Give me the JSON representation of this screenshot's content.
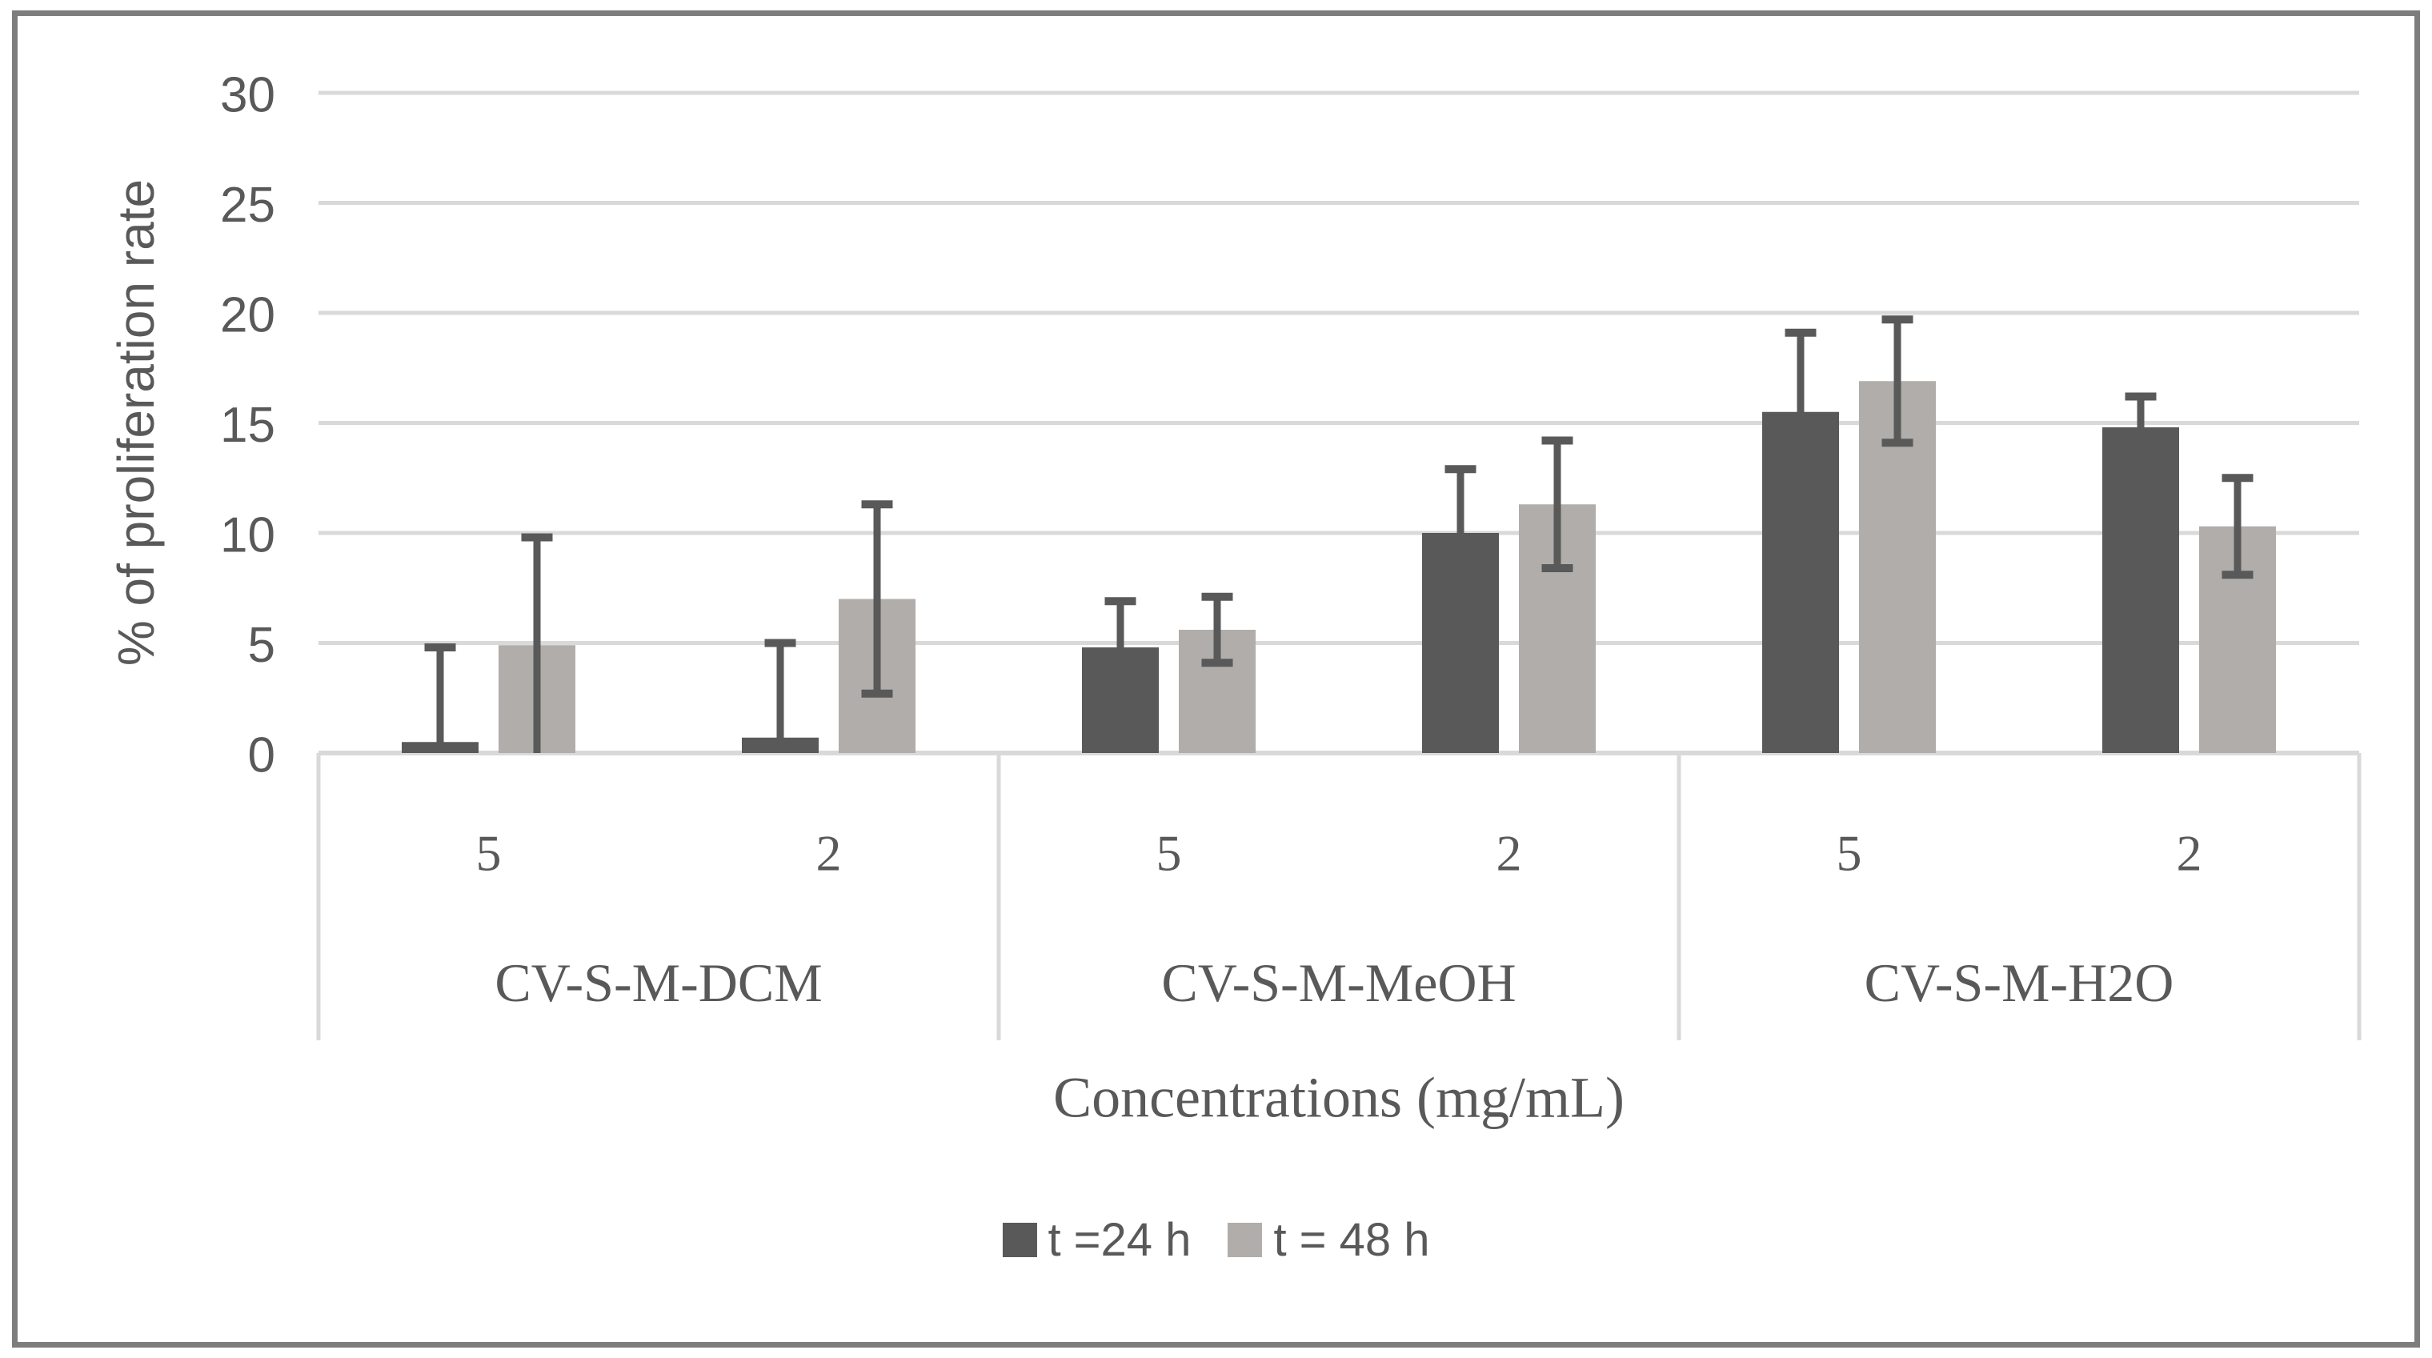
{
  "chart_data": {
    "type": "bar",
    "title": "",
    "ylabel": "% of proliferation rate",
    "xlabel": "Concentrations (mg/mL)",
    "ylim": [
      0,
      30
    ],
    "yticks": [
      0,
      5,
      10,
      15,
      20,
      25,
      30
    ],
    "grid": true,
    "legend_position": "bottom-center",
    "groups": [
      {
        "label": "CV-S-M-DCM",
        "concentrations": [
          "5",
          "2"
        ]
      },
      {
        "label": "CV-S-M-MeOH",
        "concentrations": [
          "5",
          "2"
        ]
      },
      {
        "label": "CV-S-M-H2O",
        "concentrations": [
          "5",
          "2"
        ]
      }
    ],
    "series": [
      {
        "name": "t =24 h",
        "color": "#595959",
        "values": [
          0.5,
          0.7,
          4.8,
          10.0,
          15.5,
          14.8
        ],
        "error": [
          4.3,
          4.3,
          2.1,
          2.9,
          3.6,
          1.4
        ]
      },
      {
        "name": "t = 48 h",
        "color": "#b0adaa",
        "values": [
          4.9,
          7.0,
          5.6,
          11.3,
          16.9,
          10.3
        ],
        "error": [
          4.9,
          4.3,
          1.5,
          2.9,
          2.8,
          2.2
        ]
      }
    ],
    "colors": {
      "gridline": "#d9d9d9",
      "axis_line": "#d9d9d9",
      "text": "#595959",
      "frame_border": "#7d7d7d",
      "background": "#ffffff"
    }
  }
}
